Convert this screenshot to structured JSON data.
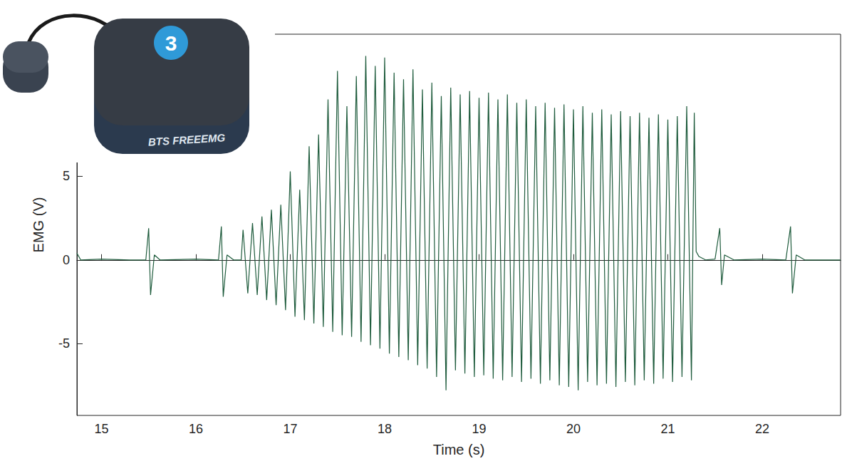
{
  "chart_data": {
    "type": "line",
    "x_label": "Time (s)",
    "y_label": "EMG (V)",
    "annotations": [
      "3",
      "BTS FREEEMG"
    ],
    "color": "#1f5c3d",
    "grid": false,
    "xlim": [
      14.74,
      22.83
    ],
    "xticks": [
      15,
      16,
      17,
      18,
      19,
      20,
      21,
      22
    ],
    "ylim": [
      -9.3,
      13.5
    ],
    "yticks": [
      -5,
      0,
      5
    ],
    "x": [
      14.74,
      14.78,
      15.0,
      15.3,
      15.47,
      15.5,
      15.52,
      15.56,
      15.62,
      16.0,
      16.24,
      16.27,
      16.29,
      16.33,
      16.4,
      16.48,
      16.5,
      16.55,
      16.6,
      16.65,
      16.7,
      16.75,
      16.8,
      16.85,
      16.9,
      16.95,
      17.0,
      17.05,
      17.1,
      17.15,
      17.2,
      17.25,
      17.3,
      17.35,
      17.4,
      17.45,
      17.5,
      17.55,
      17.6,
      17.65,
      17.7,
      17.75,
      17.8,
      17.85,
      17.9,
      17.95,
      18.0,
      18.05,
      18.1,
      18.15,
      18.2,
      18.25,
      18.3,
      18.35,
      18.4,
      18.45,
      18.5,
      18.55,
      18.6,
      18.65,
      18.7,
      18.75,
      18.8,
      18.85,
      18.9,
      18.95,
      19.0,
      19.05,
      19.1,
      19.15,
      19.2,
      19.25,
      19.3,
      19.35,
      19.4,
      19.45,
      19.5,
      19.55,
      19.6,
      19.65,
      19.7,
      19.75,
      19.8,
      19.85,
      19.9,
      19.95,
      20.0,
      20.05,
      20.1,
      20.15,
      20.2,
      20.25,
      20.3,
      20.35,
      20.4,
      20.45,
      20.5,
      20.55,
      20.6,
      20.65,
      20.7,
      20.75,
      20.8,
      20.85,
      20.9,
      20.95,
      21.0,
      21.05,
      21.1,
      21.15,
      21.2,
      21.25,
      21.28,
      21.3,
      21.33,
      21.4,
      21.5,
      21.55,
      21.57,
      21.6,
      21.7,
      22.0,
      22.25,
      22.3,
      22.32,
      22.36,
      22.45,
      22.83
    ],
    "values": [
      0.4,
      0,
      0.05,
      0,
      0,
      1.9,
      -2.1,
      0.3,
      0,
      0.05,
      0,
      2.0,
      -2.2,
      0.3,
      0,
      0,
      1.8,
      -2.0,
      2.2,
      -2.1,
      2.6,
      -2.4,
      3.0,
      -2.7,
      3.3,
      -3.0,
      5.3,
      -3.4,
      4.2,
      -3.6,
      6.8,
      -3.8,
      7.5,
      -4.0,
      9.6,
      -4.3,
      11.3,
      -4.5,
      9.2,
      -4.6,
      11.0,
      -4.9,
      12.2,
      -5.1,
      11.6,
      -5.3,
      12.1,
      -5.6,
      11.2,
      -5.8,
      10.8,
      -6.0,
      11.4,
      -6.3,
      10.2,
      -6.5,
      10.6,
      -7.0,
      9.8,
      -7.8,
      10.3,
      -6.6,
      9.9,
      -6.8,
      10.1,
      -7.0,
      9.7,
      -6.9,
      10.0,
      -7.1,
      9.6,
      -7.2,
      9.9,
      -7.0,
      9.4,
      -7.3,
      9.6,
      -7.1,
      9.2,
      -7.4,
      9.4,
      -7.2,
      9.1,
      -7.5,
      9.3,
      -7.6,
      9.0,
      -7.8,
      9.2,
      -7.3,
      8.8,
      -7.5,
      9.0,
      -7.4,
      8.7,
      -7.6,
      8.9,
      -7.3,
      8.6,
      -7.5,
      8.8,
      -7.2,
      8.5,
      -7.4,
      8.7,
      -7.1,
      8.4,
      -7.3,
      8.6,
      -7.0,
      9.2,
      -7.2,
      8.8,
      0.5,
      0.2,
      0,
      0.05,
      1.9,
      -1.5,
      0.3,
      0,
      0.05,
      0,
      2.0,
      -2.0,
      0.3,
      0,
      0
    ]
  }
}
